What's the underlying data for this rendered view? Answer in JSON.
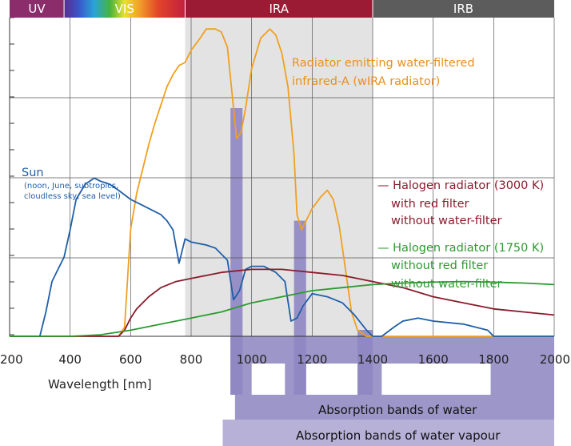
{
  "chart_data": {
    "type": "line",
    "xlabel": "Wavelength [nm]",
    "xlim": [
      200,
      2000
    ],
    "x_ticks": [
      "200",
      "400",
      "600",
      "800",
      "1000",
      "1200",
      "1400",
      "1600",
      "1800",
      "2000"
    ],
    "ylim": [
      0,
      100
    ],
    "grid": true,
    "spectral_bands": [
      {
        "label": "UV",
        "from": 200,
        "to": 380,
        "color": "#8b2c6b"
      },
      {
        "label": "VIS",
        "from": 380,
        "to": 780,
        "color": "#c11f3f"
      },
      {
        "label": "IRA",
        "from": 780,
        "to": 1400,
        "color": "#9b1b35"
      },
      {
        "label": "IRB",
        "from": 1400,
        "to": 2000,
        "color": "#5c5c5c"
      }
    ],
    "shaded_region": {
      "from": 780,
      "to": 1400,
      "color": "#e3e3e3"
    },
    "absorption_bands_water": {
      "label": "Absorption bands of water",
      "color": "#9d96c8",
      "bands": [
        [
          930,
          970
        ],
        [
          1140,
          1180
        ],
        [
          1350,
          1400
        ]
      ]
    },
    "absorption_bands_water_vapour": {
      "label": "Absorption bands of water vapour",
      "color": "#b7b1d8"
    },
    "series": [
      {
        "name": "Radiator emitting water-filtered infrared-A (wIRA radiator)",
        "color": "#f0a020",
        "points": [
          [
            200,
            0
          ],
          [
            560,
            0
          ],
          [
            580,
            3
          ],
          [
            600,
            35
          ],
          [
            620,
            47
          ],
          [
            640,
            55
          ],
          [
            660,
            63
          ],
          [
            680,
            70
          ],
          [
            700,
            76
          ],
          [
            720,
            82
          ],
          [
            740,
            86
          ],
          [
            760,
            89
          ],
          [
            780,
            90
          ],
          [
            800,
            94
          ],
          [
            830,
            98
          ],
          [
            850,
            101
          ],
          [
            880,
            101
          ],
          [
            900,
            100
          ],
          [
            920,
            95
          ],
          [
            940,
            75
          ],
          [
            950,
            65
          ],
          [
            965,
            67
          ],
          [
            980,
            75
          ],
          [
            1000,
            88
          ],
          [
            1030,
            98
          ],
          [
            1060,
            101
          ],
          [
            1080,
            99
          ],
          [
            1100,
            93
          ],
          [
            1120,
            82
          ],
          [
            1140,
            60
          ],
          [
            1150,
            40
          ],
          [
            1165,
            35
          ],
          [
            1180,
            38
          ],
          [
            1200,
            42
          ],
          [
            1230,
            46
          ],
          [
            1250,
            48
          ],
          [
            1270,
            45
          ],
          [
            1290,
            36
          ],
          [
            1310,
            22
          ],
          [
            1330,
            8
          ],
          [
            1350,
            2
          ],
          [
            1380,
            0
          ],
          [
            2000,
            0
          ]
        ]
      },
      {
        "name": "Sun",
        "color": "#1f5fa8",
        "points": [
          [
            200,
            0
          ],
          [
            300,
            0
          ],
          [
            320,
            8
          ],
          [
            340,
            18
          ],
          [
            360,
            22
          ],
          [
            380,
            26
          ],
          [
            400,
            35
          ],
          [
            420,
            45
          ],
          [
            450,
            50
          ],
          [
            480,
            52
          ],
          [
            500,
            51
          ],
          [
            530,
            50
          ],
          [
            560,
            48
          ],
          [
            600,
            45
          ],
          [
            640,
            43
          ],
          [
            680,
            41
          ],
          [
            700,
            40
          ],
          [
            720,
            38
          ],
          [
            740,
            35
          ],
          [
            760,
            24
          ],
          [
            780,
            32
          ],
          [
            800,
            31
          ],
          [
            850,
            30
          ],
          [
            880,
            29
          ],
          [
            920,
            25
          ],
          [
            940,
            12
          ],
          [
            960,
            15
          ],
          [
            980,
            22
          ],
          [
            1000,
            23
          ],
          [
            1040,
            23
          ],
          [
            1080,
            21
          ],
          [
            1110,
            18
          ],
          [
            1130,
            5
          ],
          [
            1150,
            6
          ],
          [
            1170,
            10
          ],
          [
            1200,
            14
          ],
          [
            1250,
            13
          ],
          [
            1300,
            11
          ],
          [
            1340,
            7
          ],
          [
            1380,
            2
          ],
          [
            1400,
            0
          ],
          [
            1430,
            0
          ],
          [
            1470,
            3
          ],
          [
            1500,
            5
          ],
          [
            1550,
            6
          ],
          [
            1600,
            5
          ],
          [
            1700,
            4
          ],
          [
            1780,
            2
          ],
          [
            1800,
            0
          ],
          [
            2000,
            0
          ]
        ]
      },
      {
        "name": "Halogen radiator (3000 K) with red filter without water-filter",
        "color": "#8b1a2b",
        "points": [
          [
            200,
            0
          ],
          [
            560,
            0
          ],
          [
            580,
            2
          ],
          [
            600,
            6
          ],
          [
            620,
            9
          ],
          [
            660,
            13
          ],
          [
            700,
            16
          ],
          [
            750,
            18
          ],
          [
            800,
            19
          ],
          [
            900,
            21
          ],
          [
            1000,
            22
          ],
          [
            1100,
            22
          ],
          [
            1200,
            21
          ],
          [
            1300,
            20
          ],
          [
            1400,
            18
          ],
          [
            1500,
            16
          ],
          [
            1600,
            13
          ],
          [
            1700,
            11
          ],
          [
            1800,
            9
          ],
          [
            1900,
            8
          ],
          [
            2000,
            7
          ]
        ]
      },
      {
        "name": "Halogen radiator (1750 K) without red filter without water-filter",
        "color": "#2c9a30",
        "points": [
          [
            200,
            0
          ],
          [
            400,
            0
          ],
          [
            500,
            0.5
          ],
          [
            600,
            2
          ],
          [
            700,
            4
          ],
          [
            800,
            6
          ],
          [
            900,
            8
          ],
          [
            1000,
            11
          ],
          [
            1100,
            13
          ],
          [
            1200,
            15
          ],
          [
            1300,
            16
          ],
          [
            1400,
            17
          ],
          [
            1500,
            17.5
          ],
          [
            1600,
            17.8
          ],
          [
            1700,
            18
          ],
          [
            1800,
            17.8
          ],
          [
            1900,
            17.5
          ],
          [
            2000,
            17
          ]
        ]
      }
    ],
    "annotations": {
      "wira_line1": "Radiator emitting water-filtered",
      "wira_line2": "infrared-A (wIRA radiator)",
      "sun_title": "Sun",
      "sun_note1": "(noon, June, subtropics,",
      "sun_note2": "cloudless sky, sea level)",
      "h3000_line1": "— Halogen radiator (3000 K)",
      "h3000_line2": "with red filter",
      "h3000_line3": "without water-filter",
      "h1750_line1": "— Halogen radiator (1750 K)",
      "h1750_line2": "without red filter",
      "h1750_line3": "without water-filter"
    }
  }
}
